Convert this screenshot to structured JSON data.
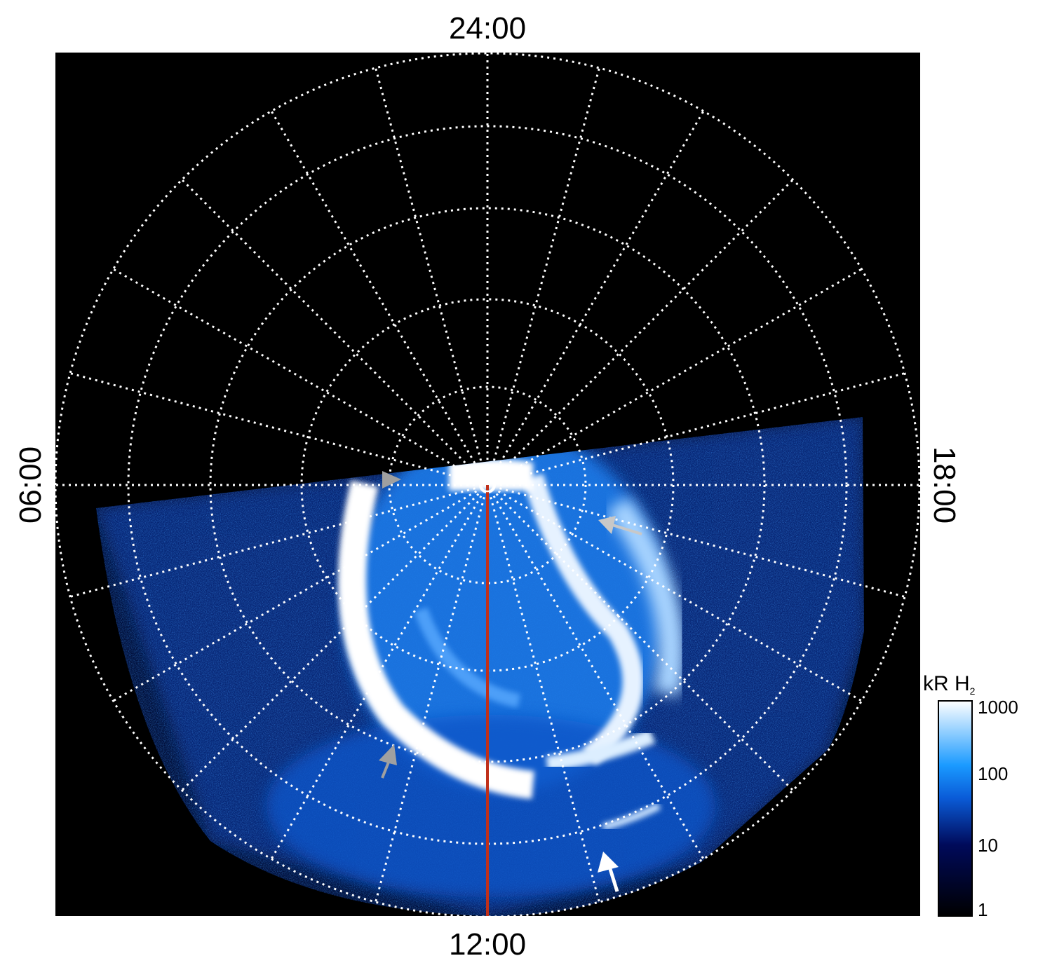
{
  "chart_data": {
    "type": "heatmap",
    "projection": "polar",
    "title": "",
    "local_time_labels": {
      "top": "24:00",
      "bottom": "12:00",
      "left": "06:00",
      "right": "18:00"
    },
    "meridian_spacing_hours": 1,
    "grid": true,
    "colorbar": {
      "label": "kR H",
      "label_subscript": "2",
      "scale": "log",
      "range": [
        1,
        1000
      ],
      "ticks": [
        "1",
        "10",
        "100",
        "1000"
      ],
      "colormap": [
        "#000000",
        "#000a5a",
        "#0a5cd8",
        "#1a9aff",
        "#ffffff"
      ]
    },
    "annotations": [
      {
        "type": "arrow",
        "color": "#a0a0a0",
        "label": ""
      },
      {
        "type": "arrow",
        "color": "#c8c8c8",
        "label": ""
      },
      {
        "type": "arrow",
        "color": "#a0a0a0",
        "label": ""
      },
      {
        "type": "arrow",
        "color": "#ffffff",
        "label": ""
      }
    ],
    "meridian_line_color": "#c0301a"
  }
}
